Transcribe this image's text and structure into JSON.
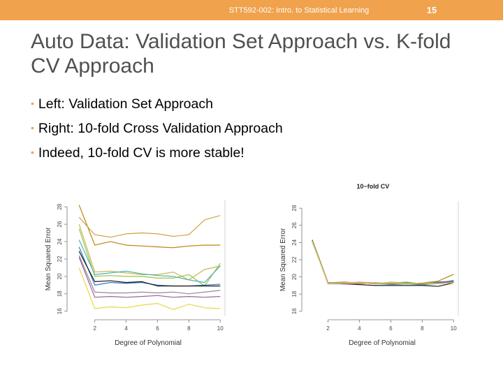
{
  "header": {
    "course": "STT592-002: Intro. to Statistical Learning",
    "page_number": "15",
    "bar_color": "#f0a24c"
  },
  "title": "Auto Data: Validation Set Approach vs. K-fold CV Approach",
  "bullets": [
    "Left: Validation Set Approach",
    "Right: 10-fold Cross Validation Approach",
    "Indeed, 10-fold CV is more stable!"
  ],
  "chart_data": [
    {
      "type": "line",
      "title": "",
      "xlabel": "Degree of Polynomial",
      "ylabel": "Mean Squared Error",
      "x_ticks": [
        2,
        4,
        6,
        8,
        10
      ],
      "y_ticks": [
        16,
        18,
        20,
        22,
        24,
        26,
        28
      ],
      "xlim": [
        0.5,
        10.3
      ],
      "ylim": [
        15.5,
        28.5
      ],
      "x": [
        1,
        2,
        3,
        4,
        5,
        6,
        7,
        8,
        9,
        10
      ],
      "series": [
        {
          "color": "#b8860b",
          "values": [
            28.2,
            23.6,
            24.0,
            23.6,
            23.5,
            23.4,
            23.3,
            23.5,
            23.6,
            23.6
          ]
        },
        {
          "color": "#d2a24a",
          "values": [
            26.8,
            24.8,
            24.5,
            24.9,
            25.0,
            24.9,
            24.6,
            24.8,
            26.5,
            27.0
          ]
        },
        {
          "color": "#c7b84a",
          "values": [
            26.0,
            20.5,
            20.6,
            20.4,
            20.2,
            20.2,
            20.5,
            19.6,
            20.8,
            21.2
          ]
        },
        {
          "color": "#9bc24d",
          "values": [
            25.5,
            20.0,
            20.1,
            20.0,
            20.0,
            19.8,
            19.8,
            20.2,
            18.9,
            21.5
          ]
        },
        {
          "color": "#4fb3b0",
          "values": [
            24.2,
            20.2,
            20.4,
            20.6,
            20.3,
            20.1,
            20.0,
            19.6,
            19.3,
            21.2
          ]
        },
        {
          "color": "#2f7fbf",
          "values": [
            23.4,
            19.0,
            19.3,
            19.2,
            19.3,
            19.0,
            18.9,
            18.9,
            19.0,
            19.1
          ]
        },
        {
          "color": "#1a1a1a",
          "values": [
            22.9,
            19.4,
            19.5,
            19.3,
            19.4,
            18.9,
            18.9,
            18.9,
            18.9,
            18.9
          ]
        },
        {
          "color": "#8e8e8e",
          "values": [
            22.4,
            18.2,
            18.1,
            18.1,
            18.2,
            18.1,
            18.2,
            18.0,
            18.2,
            18.4
          ]
        },
        {
          "color": "#a05aa8",
          "values": [
            22.2,
            17.6,
            17.7,
            17.6,
            17.7,
            17.8,
            17.6,
            17.7,
            17.6,
            17.7
          ]
        },
        {
          "color": "#e5d84a",
          "values": [
            21.0,
            16.3,
            16.5,
            16.4,
            16.7,
            16.9,
            16.2,
            16.8,
            16.4,
            16.3
          ]
        }
      ]
    },
    {
      "type": "line",
      "title": "10−fold CV",
      "xlabel": "Degree of Polynomial",
      "ylabel": "Mean Squared Error",
      "x_ticks": [
        2,
        4,
        6,
        8,
        10
      ],
      "y_ticks": [
        16,
        18,
        20,
        22,
        24,
        26,
        28
      ],
      "xlim": [
        0.6,
        10.3
      ],
      "ylim": [
        15.5,
        28.5
      ],
      "x": [
        1,
        2,
        3,
        4,
        5,
        6,
        7,
        8,
        9,
        10
      ],
      "series": [
        {
          "color": "#b8860b",
          "values": [
            24.2,
            19.3,
            19.4,
            19.3,
            19.2,
            19.3,
            19.2,
            19.3,
            19.5,
            20.3
          ]
        },
        {
          "color": "#d2a24a",
          "values": [
            24.2,
            19.2,
            19.3,
            19.4,
            19.3,
            19.2,
            19.3,
            19.2,
            19.3,
            19.6
          ]
        },
        {
          "color": "#c7b84a",
          "values": [
            24.3,
            19.3,
            19.2,
            19.3,
            19.2,
            19.4,
            19.3,
            19.0,
            19.4,
            19.5
          ]
        },
        {
          "color": "#9bc24d",
          "values": [
            24.2,
            19.2,
            19.3,
            19.2,
            19.3,
            19.3,
            19.4,
            19.2,
            19.3,
            19.4
          ]
        },
        {
          "color": "#4fb3b0",
          "values": [
            24.1,
            19.3,
            19.3,
            19.2,
            19.3,
            19.1,
            19.2,
            19.1,
            19.2,
            19.6
          ]
        },
        {
          "color": "#2f7fbf",
          "values": [
            24.2,
            19.2,
            19.2,
            19.3,
            19.2,
            19.2,
            19.3,
            19.2,
            19.4,
            19.5
          ]
        },
        {
          "color": "#1a1a1a",
          "values": [
            24.3,
            19.3,
            19.2,
            19.1,
            19.0,
            19.0,
            19.0,
            19.0,
            18.9,
            19.3
          ]
        },
        {
          "color": "#8e8e8e",
          "values": [
            24.2,
            19.2,
            19.2,
            19.3,
            19.2,
            19.3,
            19.2,
            19.3,
            19.3,
            19.4
          ]
        },
        {
          "color": "#a05aa8",
          "values": [
            24.1,
            19.3,
            19.2,
            19.2,
            19.3,
            19.2,
            19.2,
            19.2,
            19.3,
            19.4
          ]
        },
        {
          "color": "#e5d84a",
          "values": [
            24.2,
            19.2,
            19.3,
            19.3,
            19.2,
            19.3,
            19.2,
            19.3,
            19.2,
            19.3
          ]
        }
      ]
    }
  ]
}
